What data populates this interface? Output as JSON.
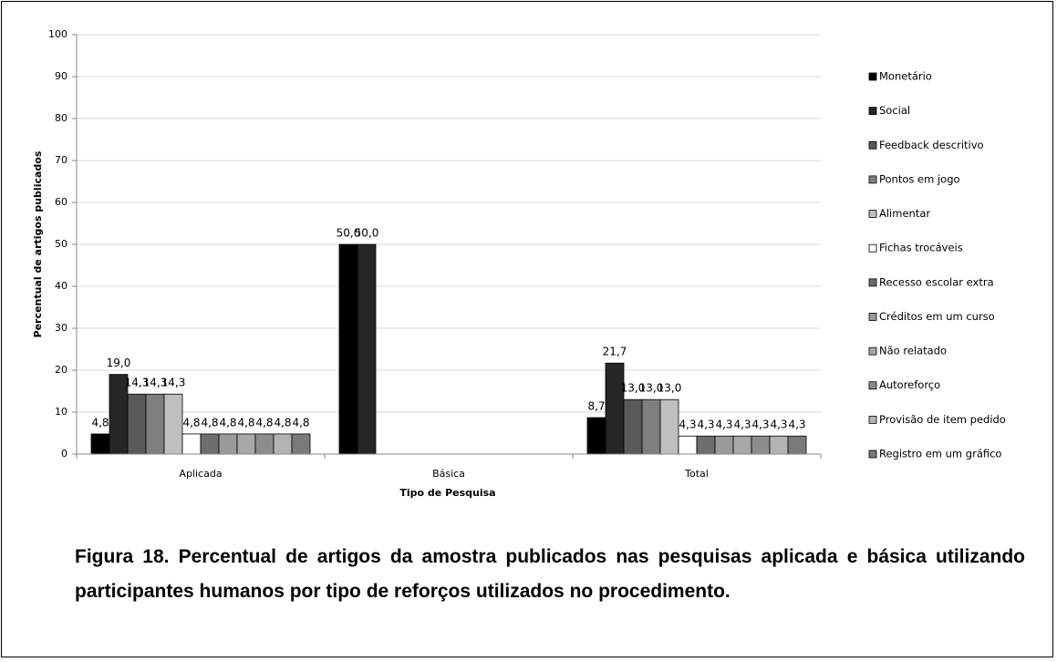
{
  "chart_data": {
    "type": "bar",
    "categories": [
      "Aplicada",
      "Básica",
      "Total"
    ],
    "series": [
      {
        "name": "Monetário",
        "color": "#000000",
        "values": [
          4.8,
          50.0,
          8.7
        ],
        "value_labels": [
          "4,8",
          "50,0",
          "8,7"
        ]
      },
      {
        "name": "Social",
        "color": "#262626",
        "values": [
          19.0,
          50.0,
          21.7
        ],
        "value_labels": [
          "19,0",
          "50,0",
          "21,7"
        ]
      },
      {
        "name": "Feedback descritivo",
        "color": "#595959",
        "values": [
          14.3,
          null,
          13.0
        ],
        "value_labels": [
          "14,3",
          null,
          "13,0"
        ]
      },
      {
        "name": "Pontos em jogo",
        "color": "#7f7f7f",
        "values": [
          14.3,
          null,
          13.0
        ],
        "value_labels": [
          "14,3",
          null,
          "13,0"
        ]
      },
      {
        "name": "Alimentar",
        "color": "#bfbfbf",
        "values": [
          14.3,
          null,
          13.0
        ],
        "value_labels": [
          "14,3",
          null,
          "13,0"
        ]
      },
      {
        "name": "Fichas trocáveis",
        "color": "#ffffff",
        "values": [
          4.8,
          null,
          4.3
        ],
        "value_labels": [
          "4,8",
          null,
          "4,3"
        ]
      },
      {
        "name": "Recesso escolar extra",
        "color": "#6e6e6e",
        "values": [
          4.8,
          null,
          4.3
        ],
        "value_labels": [
          "4,8",
          null,
          "4,3"
        ]
      },
      {
        "name": "Créditos em um curso",
        "color": "#9a9a9a",
        "values": [
          4.8,
          null,
          4.3
        ],
        "value_labels": [
          "4,8",
          null,
          "4,3"
        ]
      },
      {
        "name": "Não relatado",
        "color": "#a8a8a8",
        "values": [
          4.8,
          null,
          4.3
        ],
        "value_labels": [
          "4,8",
          null,
          "4,3"
        ]
      },
      {
        "name": "Autoreforço",
        "color": "#8c8c8c",
        "values": [
          4.8,
          null,
          4.3
        ],
        "value_labels": [
          "4,8",
          null,
          "4,3"
        ]
      },
      {
        "name": "Provisão de item pedido",
        "color": "#b3b3b3",
        "values": [
          4.8,
          null,
          4.3
        ],
        "value_labels": [
          "4,8",
          null,
          "4,3"
        ]
      },
      {
        "name": "Registro em um gráfico",
        "color": "#7a7a7a",
        "values": [
          4.8,
          null,
          4.3
        ],
        "value_labels": [
          "4,8",
          null,
          "4,3"
        ]
      }
    ],
    "ylim": [
      0,
      100
    ],
    "yticks": [
      0,
      10,
      20,
      30,
      40,
      50,
      60,
      70,
      80,
      90,
      100
    ],
    "ylabel": "Percentual de artigos publicados",
    "xlabel": "Tipo de Pesquisa",
    "legend": "right",
    "grid": true,
    "caption": "Figura 18. Percentual de artigos da amostra publicados nas pesquisas aplicada e básica utilizando participantes humanos por tipo de reforços utilizados no procedimento."
  }
}
